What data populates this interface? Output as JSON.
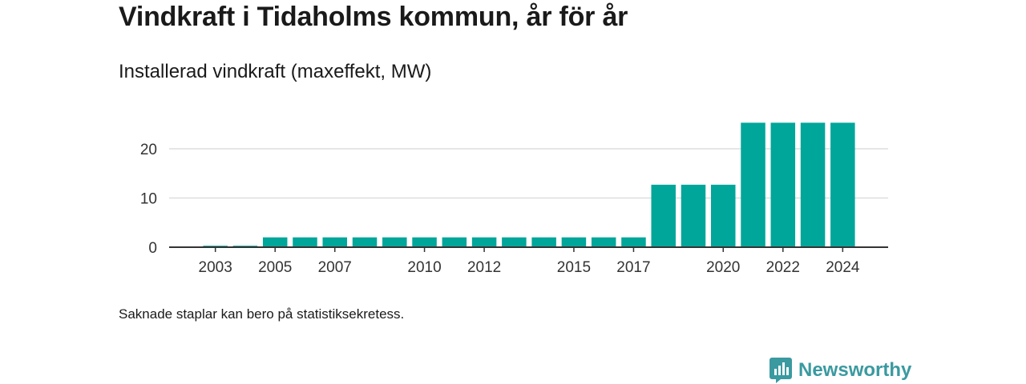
{
  "title": "Vindkraft i Tidaholms kommun, år för år",
  "subtitle": "Installerad vindkraft (maxeffekt, MW)",
  "note": "Saknade staplar kan bero på statistiksekretess.",
  "brand": {
    "name": "Newsworthy",
    "icon": "newsworthy-logo-icon",
    "color": "#3a9aa0"
  },
  "chart_data": {
    "type": "bar",
    "title": "",
    "xlabel": "",
    "ylabel": "",
    "categories": [
      "2002",
      "2003",
      "2004",
      "2005",
      "2006",
      "2007",
      "2008",
      "2009",
      "2010",
      "2011",
      "2012",
      "2013",
      "2014",
      "2015",
      "2016",
      "2017",
      "2018",
      "2019",
      "2020",
      "2021",
      "2022",
      "2023",
      "2024"
    ],
    "values": [
      0,
      0.3,
      0.3,
      2,
      2,
      2,
      2,
      2,
      2,
      2,
      2,
      2,
      2,
      2,
      2,
      2,
      12.7,
      12.7,
      12.7,
      25.3,
      25.3,
      25.3,
      25.3
    ],
    "x_tick_labels": [
      "2003",
      "2005",
      "2007",
      "2010",
      "2012",
      "2015",
      "2017",
      "2020",
      "2022",
      "2024"
    ],
    "y_ticks": [
      0,
      10,
      20
    ],
    "ylim": [
      0,
      27
    ],
    "grid": "horizontal",
    "bar_color": "#00a69a",
    "grid_color": "#dddddd",
    "axis_color": "#333333"
  }
}
